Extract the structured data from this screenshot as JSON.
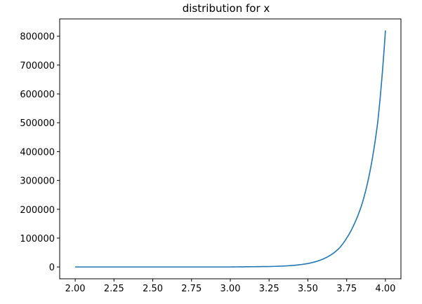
{
  "chart_data": {
    "type": "line",
    "title": "distribution for x",
    "xlabel": "",
    "ylabel": "",
    "xlim": [
      1.9,
      4.1
    ],
    "ylim": [
      -41000,
      860000
    ],
    "x_ticks": [
      2.0,
      2.25,
      2.5,
      2.75,
      3.0,
      3.25,
      3.5,
      3.75,
      4.0
    ],
    "x_tick_labels": [
      "2.00",
      "2.25",
      "2.50",
      "2.75",
      "3.00",
      "3.25",
      "3.50",
      "3.75",
      "4.00"
    ],
    "y_ticks": [
      0,
      100000,
      200000,
      300000,
      400000,
      500000,
      600000,
      700000,
      800000
    ],
    "y_tick_labels": [
      "0",
      "100000",
      "200000",
      "300000",
      "400000",
      "500000",
      "600000",
      "700000",
      "800000"
    ],
    "grid": false,
    "line_color": "#1f77b4",
    "series": [
      {
        "x": [
          2.0,
          2.5,
          3.0,
          3.25,
          3.5,
          3.6,
          3.7,
          3.75,
          3.8,
          3.85,
          3.9,
          3.95,
          4.0
        ],
        "y": [
          0,
          0,
          0,
          1500,
          12000,
          28000,
          64000,
          100000,
          150000,
          220000,
          330000,
          500000,
          820000
        ]
      }
    ]
  }
}
